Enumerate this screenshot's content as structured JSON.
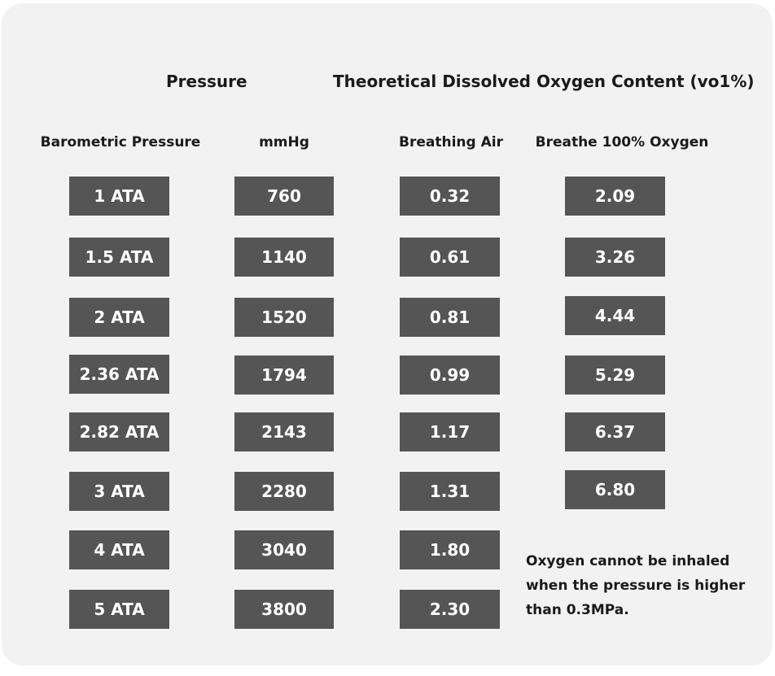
{
  "headings": {
    "pressure": "Pressure",
    "dissolved": "Theoretical Dissolved Oxygen Content (vo1%)"
  },
  "columns": {
    "barometric": "Barometric Pressure",
    "mmhg": "mmHg",
    "air": "Breathing Air",
    "oxygen": "Breathe 100% Oxygen"
  },
  "rows": [
    {
      "ata": "1 ATA",
      "mmhg": "760",
      "air": "0.32",
      "oxygen": "2.09"
    },
    {
      "ata": "1.5 ATA",
      "mmhg": "1140",
      "air": "0.61",
      "oxygen": "3.26"
    },
    {
      "ata": "2 ATA",
      "mmhg": "1520",
      "air": "0.81",
      "oxygen": "4.44"
    },
    {
      "ata": "2.36 ATA",
      "mmhg": "1794",
      "air": "0.99",
      "oxygen": "5.29"
    },
    {
      "ata": "2.82 ATA",
      "mmhg": "2143",
      "air": "1.17",
      "oxygen": "6.37"
    },
    {
      "ata": "3 ATA",
      "mmhg": "2280",
      "air": "1.31",
      "oxygen": "6.80"
    },
    {
      "ata": "4 ATA",
      "mmhg": "3040",
      "air": "1.80"
    },
    {
      "ata": "5 ATA",
      "mmhg": "3800",
      "air": "2.30"
    }
  ],
  "note": {
    "lines": [
      "Oxygen cannot be inhaled",
      "when the pressure is higher",
      "than 0.3MPa."
    ]
  },
  "colors": {
    "panel_background": "#f2f2f2",
    "cell_background": "#555555",
    "cell_text": "#ffffff",
    "heading_text": "#1a1a1a"
  }
}
